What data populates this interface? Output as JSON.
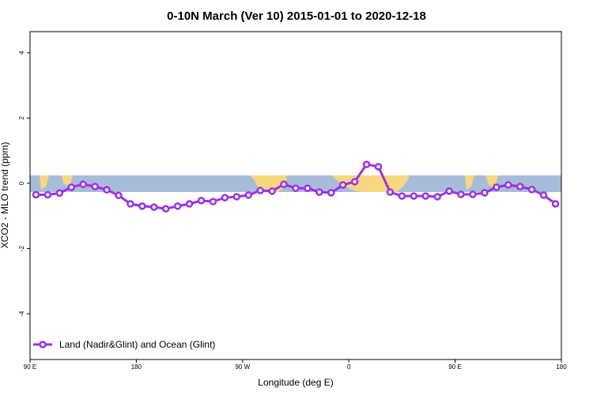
{
  "chart_data": {
    "type": "line",
    "title": "0-10N March (Ver 10)   2015-01-01 to 2020-12-18",
    "xlabel": "Longitude (deg E)",
    "ylabel": "XCO2 - MLO trend (ppm)",
    "x": [
      95,
      105,
      115,
      125,
      135,
      145,
      155,
      165,
      175,
      185,
      195,
      205,
      215,
      225,
      235,
      245,
      255,
      265,
      275,
      285,
      295,
      305,
      315,
      325,
      335,
      345,
      355,
      365,
      375,
      385,
      395,
      405,
      415,
      425,
      435,
      445,
      455,
      465,
      475,
      485,
      495,
      505,
      515,
      525,
      535
    ],
    "series": [
      {
        "name": "Land (Nadir&Glint) and Ocean (Glint)",
        "color": "#9b30e8",
        "values": [
          -0.35,
          -0.35,
          -0.3,
          -0.12,
          -0.03,
          -0.1,
          -0.2,
          -0.37,
          -0.63,
          -0.7,
          -0.73,
          -0.78,
          -0.7,
          -0.63,
          -0.53,
          -0.56,
          -0.44,
          -0.41,
          -0.36,
          -0.22,
          -0.24,
          -0.03,
          -0.15,
          -0.15,
          -0.27,
          -0.29,
          -0.05,
          0.05,
          0.58,
          0.51,
          -0.27,
          -0.39,
          -0.39,
          -0.39,
          -0.41,
          -0.24,
          -0.34,
          -0.34,
          -0.29,
          -0.12,
          -0.05,
          -0.1,
          -0.19,
          -0.36,
          -0.63
        ]
      }
    ],
    "xlim": [
      90,
      540
    ],
    "xticks": [
      {
        "value": 90,
        "label": "90 E"
      },
      180,
      {
        "value": 270,
        "label": "90 W"
      },
      {
        "value": 360,
        "label": "0"
      },
      {
        "value": 450,
        "label": "90 E"
      },
      {
        "value": 540,
        "label": "180"
      }
    ],
    "ylim": [
      -5.4,
      4.65
    ],
    "yticks": [
      4,
      2,
      0,
      -2,
      -4
    ],
    "legend": "bottom-left"
  }
}
